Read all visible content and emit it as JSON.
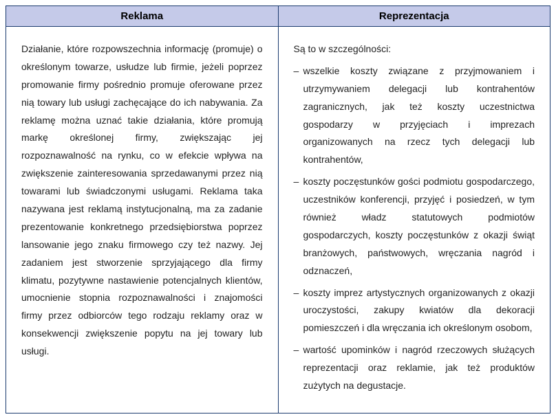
{
  "table": {
    "headers": {
      "left": "Reklama",
      "right": "Reprezentacja"
    },
    "left_para": "Działanie, które rozpowszechnia informację (promuje) o określonym towarze, usłudze lub firmie, jeżeli poprzez promowanie firmy pośrednio promuje oferowane przez nią towary lub usługi zachęcające do ich nabywania. Za reklamę można uznać takie działania, które promują markę określonej firmy, zwiększając jej rozpoznawalność na rynku, co w efekcie wpływa na zwiększenie zainteresowania sprzedawanymi przez nią towarami lub świadczonymi usługami. Reklama taka nazywana jest reklamą instytucjonalną, ma za zadanie prezentowanie konkretnego przedsiębiorstwa poprzez lansowanie jego znaku firmowego czy też nazwy. Jej zadaniem jest stworzenie sprzyjającego dla firmy klimatu, pozytywne nastawienie potencjalnych klientów, umocnienie stopnia rozpoznawalności i znajomości firmy przez odbiorców tego rodzaju reklamy oraz w konsekwencji zwiększenie popytu na jej towary lub usługi.",
    "right_intro": "Są to w szczególności:",
    "right_items": [
      "wszelkie koszty związane z przyjmowaniem i utrzymywaniem delegacji lub kontrahentów zagranicznych, jak też koszty uczestnictwa gospodarzy w przyjęciach i imprezach organizowanych na rzecz tych delegacji lub kontrahentów,",
      "koszty poczęstunków gości podmiotu gospodarczego, uczestników konferencji, przyjęć i posiedzeń, w tym również władz statutowych podmiotów gospodarczych, koszty poczęstunków z okazji świąt branżowych, państwowych, wręczania nagród i odznaczeń,",
      "koszty imprez artystycznych organizowanych z okazji uroczystości, zakupy kwiatów dla dekoracji pomieszczeń i dla wręczania ich określonym osobom,",
      "wartość upominków i nagród rzeczowych służących reprezentacji oraz reklamie, jak też produktów zużytych na degustacje."
    ]
  },
  "colors": {
    "header_bg": "#c5cae9",
    "border": "#1a3a6e",
    "text": "#222222"
  }
}
